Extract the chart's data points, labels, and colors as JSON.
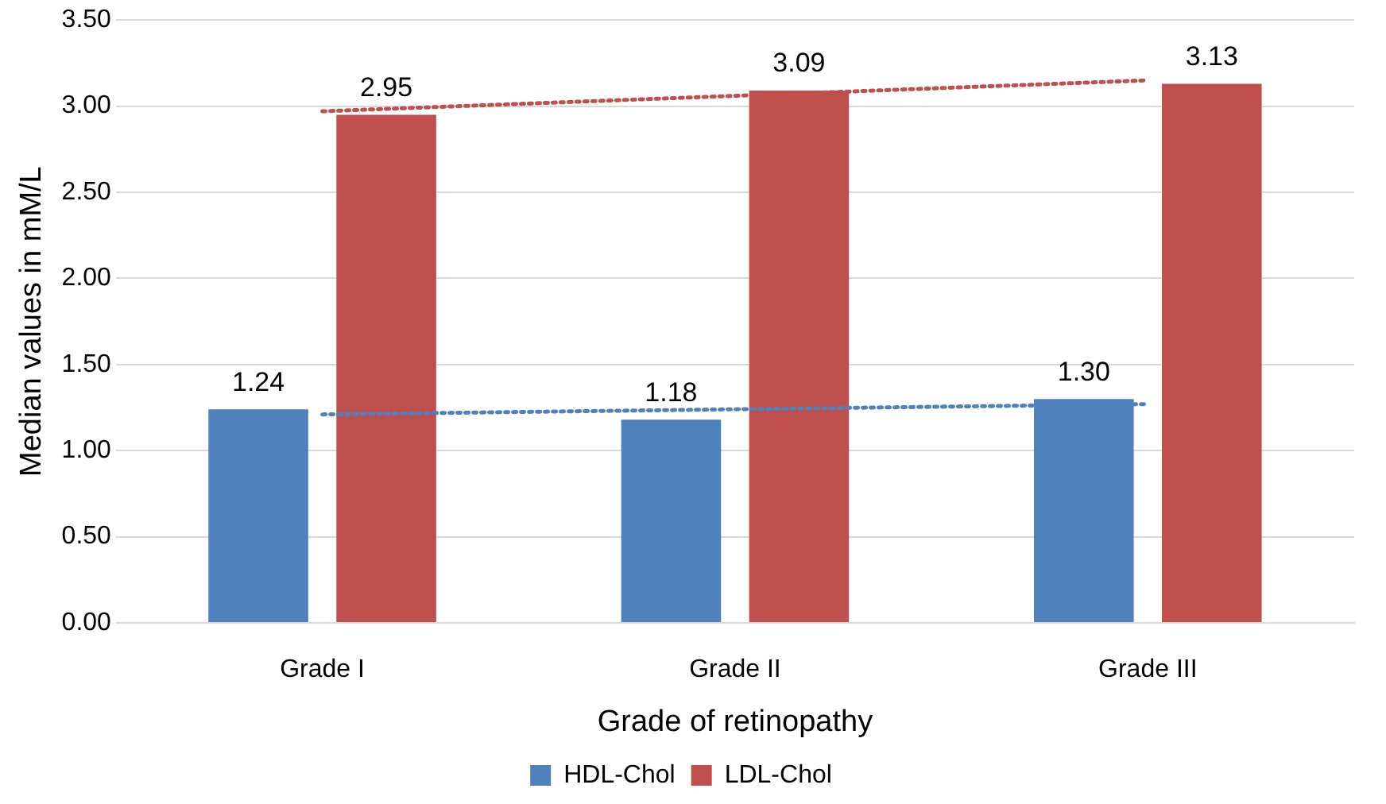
{
  "chart_data": {
    "type": "bar",
    "xlabel": "Grade of retinopathy",
    "ylabel": "Median values in mM/L",
    "categories": [
      "Grade I",
      "Grade II",
      "Grade III"
    ],
    "series": [
      {
        "name": "HDL-Chol",
        "color": "#4f81bd",
        "values": [
          1.24,
          1.18,
          1.3
        ],
        "value_labels": [
          "1.24",
          "1.18",
          "1.30"
        ]
      },
      {
        "name": "LDL-Chol",
        "color": "#c0504d",
        "values": [
          2.95,
          3.09,
          3.13
        ],
        "value_labels": [
          "2.95",
          "3.09",
          "3.13"
        ]
      },
      {
        "type": "line",
        "color": "#4f81bd",
        "line_style": "dotted",
        "x": [
          "Grade I",
          "Grade III"
        ],
        "values": [
          1.21,
          1.27
        ]
      },
      {
        "type": "line",
        "color": "#c0504d",
        "line_style": "dotted",
        "x": [
          "Grade I",
          "Grade III"
        ],
        "values": [
          2.97,
          3.15
        ]
      }
    ],
    "ylim": [
      0,
      3.5
    ],
    "yticks": [
      {
        "value": 0,
        "label": "0.00"
      },
      {
        "value": 0.5,
        "label": "0.50"
      },
      {
        "value": 1,
        "label": "1.00"
      },
      {
        "value": 1.5,
        "label": "1.50"
      },
      {
        "value": 2,
        "label": "2.00"
      },
      {
        "value": 2.5,
        "label": "2.50"
      },
      {
        "value": 3,
        "label": "3.00"
      },
      {
        "value": 3.5,
        "label": "3.50"
      }
    ],
    "grid": "y",
    "legend": "bottom"
  }
}
